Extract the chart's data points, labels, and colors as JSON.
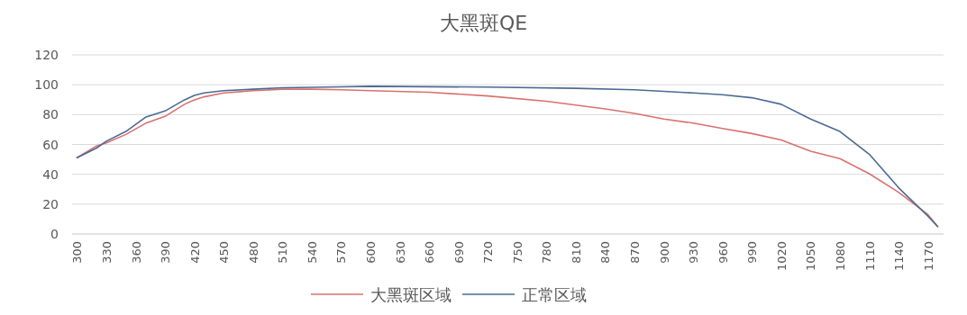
{
  "chart_data": {
    "type": "line",
    "title": "大黑斑QE",
    "series": [
      {
        "name": "大黑斑区域",
        "color": "#d9716f",
        "x": [
          300,
          320,
          330,
          350,
          370,
          390,
          410,
          420,
          430,
          450,
          480,
          510,
          540,
          570,
          600,
          660,
          720,
          780,
          840,
          870,
          900,
          930,
          960,
          990,
          1020,
          1050,
          1080,
          1110,
          1140,
          1170,
          1180
        ],
        "values": [
          51.1,
          59,
          61,
          66.7,
          74.1,
          78.8,
          86.9,
          89.9,
          91.9,
          94.5,
          96,
          97,
          97,
          96.6,
          96,
          95,
          92.5,
          88.9,
          83.8,
          80.8,
          77,
          74.3,
          70.7,
          67.3,
          63,
          55.5,
          50.5,
          40.4,
          28,
          13,
          5
        ]
      },
      {
        "name": "正常区域",
        "color": "#4a6a94",
        "x": [
          300,
          320,
          330,
          350,
          370,
          390,
          410,
          420,
          430,
          450,
          480,
          510,
          570,
          600,
          720,
          810,
          870,
          900,
          930,
          960,
          990,
          1020,
          1050,
          1080,
          1110,
          1140,
          1170,
          1180
        ],
        "values": [
          51.1,
          57.6,
          62.2,
          68.7,
          78.2,
          82.4,
          89.9,
          92.9,
          94.5,
          96,
          97,
          98,
          98.6,
          99,
          98.4,
          97.6,
          96.6,
          95.6,
          94.5,
          93.3,
          91.3,
          86.9,
          77,
          68.7,
          53.5,
          31,
          12,
          5
        ]
      }
    ],
    "xlim": [
      295,
      1186
    ],
    "xticks": [
      300,
      330,
      360,
      390,
      420,
      450,
      480,
      510,
      540,
      570,
      600,
      630,
      660,
      690,
      720,
      750,
      780,
      810,
      840,
      870,
      900,
      930,
      960,
      990,
      1020,
      1050,
      1080,
      1110,
      1140,
      1170
    ],
    "ylim": [
      0,
      120
    ],
    "yticks": [
      0,
      20,
      40,
      60,
      80,
      100,
      120
    ],
    "grid": "y",
    "legend": "bottom",
    "marker": "none",
    "line_style": "solid"
  }
}
